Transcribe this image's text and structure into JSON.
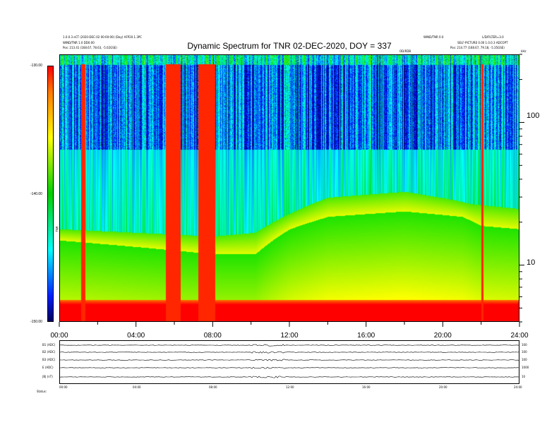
{
  "header": {
    "title": "Dynamic Spectrum for TNR 02-DEC-2020, DOY = 337",
    "left_info": [
      "1.0.0.3  eCT  (2020-DEC-02 00:00:00)  (Day)  AFP20.1.3PC",
      "WIND/TNR 1.0 DD0.00",
      "Pos:  213.41 (168.67, 78.63, -5.02GSE)"
    ],
    "right_info": [
      "WIND/TNR 0.0",
      "L/D/FILTER=3.0",
      "SELF-PICTURE  0.00  1.0.0.3  ADCOPT",
      "Pos:  214.77 (168.67, 79.18, -5.35GSE)"
    ],
    "rdb_label": "OD/RDB",
    "khz_label": "kHz"
  },
  "colorbar": {
    "ticks": [
      "-130.00",
      "-140.00",
      "-150.00"
    ],
    "unit": "TNR"
  },
  "chart_data": {
    "type": "heatmap",
    "title": "Dynamic Spectrum for TNR 02-DEC-2020, DOY = 337",
    "x_ticks": [
      "00:00",
      "04:00",
      "08:00",
      "12:00",
      "16:00",
      "20:00",
      "24:00"
    ],
    "xlim": [
      0,
      24
    ],
    "y_ticks": [
      "100",
      "10"
    ],
    "yscale": "log",
    "ylim": [
      4,
      300
    ],
    "zlim": [
      -150,
      -130
    ],
    "colors": [
      "#000050",
      "#0010ff",
      "#00ffff",
      "#00e000",
      "#ffff00",
      "#ff8000",
      "#ff0000"
    ],
    "features": {
      "plasma_line_top": [
        [
          0,
          18
        ],
        [
          8,
          16
        ],
        [
          10.2,
          17
        ],
        [
          14,
          30
        ],
        [
          18,
          33
        ],
        [
          20.5,
          29
        ],
        [
          21.5,
          27
        ],
        [
          24,
          25
        ]
      ],
      "plasma_line_bottom": [
        [
          0,
          15
        ],
        [
          8,
          12
        ],
        [
          10.2,
          12
        ],
        [
          12,
          18
        ],
        [
          14,
          22
        ],
        [
          18,
          24
        ],
        [
          21,
          22
        ],
        [
          22,
          19
        ],
        [
          24,
          18
        ]
      ],
      "upper_band_edge": 65,
      "red_bursts": [
        [
          1.1,
          1.3
        ],
        [
          5.5,
          6.3
        ],
        [
          7.2,
          8.1
        ],
        [
          22.0,
          22.1
        ]
      ],
      "baseline_red_floor": 5
    }
  },
  "lower_panel": {
    "channels": [
      {
        "label": "B1 (ADC)",
        "value": "100"
      },
      {
        "label": "B2 (ADC)",
        "value": "100"
      },
      {
        "label": "B3 (ADC)",
        "value": "100"
      },
      {
        "label": "E (ADC)",
        "value": "1000"
      },
      {
        "label": "|B| (nT)",
        "value": "10"
      }
    ],
    "x_ticks": [
      "00:00",
      "04:00",
      "08:00",
      "12:00",
      "16:00",
      "20:00",
      "24:00"
    ],
    "footer": "Status:"
  }
}
